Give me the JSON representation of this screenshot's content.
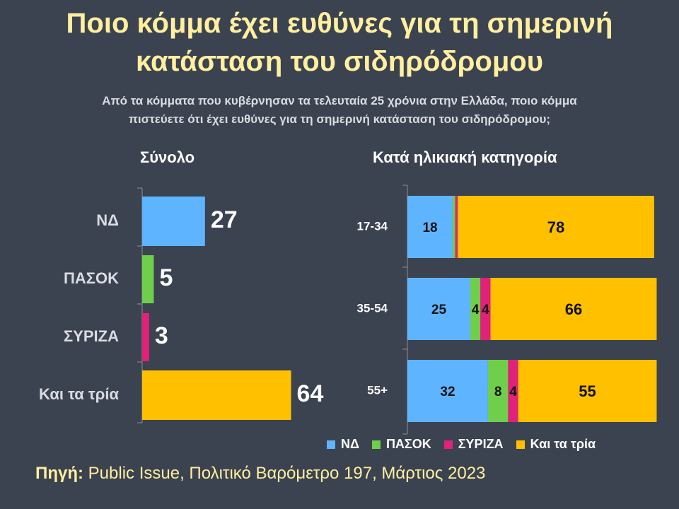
{
  "header": {
    "title_line1": "Ποιο κόμμα έχει ευθύνες για τη σημερινή",
    "title_line2": "κατάσταση του σιδηρόδρομου",
    "subtitle_line1": "Από τα κόμματα που κυβέρνησαν τα τελευταία 25 χρόνια στην Ελλάδα, ποιο κόμμα",
    "subtitle_line2": "πιστεύετε ότι έχει ευθύνες για τη σημερινή κατάσταση του σιδηρόδρομου;"
  },
  "colors": {
    "background": "#3b4250",
    "title": "#ffef9f",
    "nd": "#5fb4ff",
    "pasok": "#6fcf4a",
    "syriza": "#e0227a",
    "all_three": "#ffc000"
  },
  "legend": [
    {
      "label": "ΝΔ",
      "color": "#5fb4ff"
    },
    {
      "label": "ΠΑΣΟΚ",
      "color": "#6fcf4a"
    },
    {
      "label": "ΣΥΡΙΖΑ",
      "color": "#e0227a"
    },
    {
      "label": "Και τα τρία",
      "color": "#ffc000"
    }
  ],
  "source": {
    "label": "Πηγή:",
    "text": "Public Issue, Πολιτικό Βαρόμετρο 197, Μάρτιος 2023"
  },
  "chart_data": [
    {
      "type": "bar",
      "orientation": "horizontal",
      "title": "Σύνολο",
      "categories": [
        "ΝΔ",
        "ΠΑΣΟΚ",
        "ΣΥΡΙΖΑ",
        "Και τα τρία"
      ],
      "values": [
        27,
        5,
        3,
        64
      ],
      "colors": [
        "#5fb4ff",
        "#6fcf4a",
        "#e0227a",
        "#ffc000"
      ],
      "xlim": [
        0,
        100
      ]
    },
    {
      "type": "bar",
      "orientation": "horizontal",
      "stacked": true,
      "title": "Κατά ηλικιακή κατηγορία",
      "categories": [
        "17-34",
        "35-54",
        "55+"
      ],
      "series": [
        {
          "name": "ΝΔ",
          "values": [
            18,
            25,
            32
          ],
          "labels": [
            "18",
            "25",
            "32"
          ]
        },
        {
          "name": "ΠΑΣΟΚ",
          "values": [
            1,
            4,
            8
          ],
          "labels": [
            "",
            "4",
            "8"
          ]
        },
        {
          "name": "ΣΥΡΙΖΑ",
          "values": [
            1,
            4,
            4
          ],
          "labels": [
            "",
            "4",
            "4"
          ]
        },
        {
          "name": "Και τα τρία",
          "values": [
            78,
            66,
            55
          ],
          "labels": [
            "78",
            "66",
            "55"
          ]
        }
      ],
      "xlim": [
        0,
        100
      ]
    }
  ]
}
